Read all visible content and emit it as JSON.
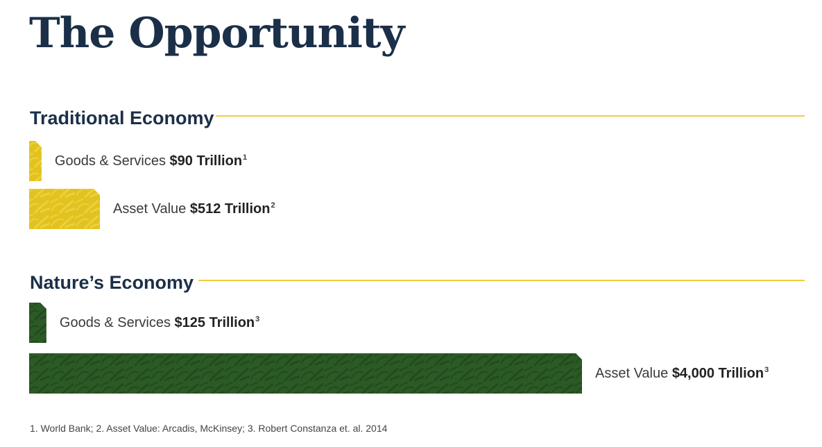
{
  "title": "The Opportunity",
  "colors": {
    "title": "#1b2f48",
    "rule": "#f1cc3f",
    "traditional_bar": "#e3c21f",
    "traditional_bar_light": "#efd84a",
    "nature_bar": "#2b5a26",
    "nature_bar_dark": "#1e4419"
  },
  "chart_data": {
    "type": "bar",
    "orientation": "horizontal",
    "unit": "Trillion",
    "groups": [
      {
        "name": "Traditional Economy",
        "bars": [
          {
            "label": "Goods & Services",
            "value": 90,
            "value_text": "$90 Trillion",
            "footnote": "1"
          },
          {
            "label": "Asset Value",
            "value": 512,
            "value_text": "$512 Trillion",
            "footnote": "2"
          }
        ]
      },
      {
        "name": "Nature’s Economy",
        "bars": [
          {
            "label": "Goods & Services",
            "value": 125,
            "value_text": "$125 Trillion",
            "footnote": "3"
          },
          {
            "label": "Asset Value",
            "value": 4000,
            "value_text": "$4,000 Trillion",
            "footnote": "3"
          }
        ]
      }
    ]
  },
  "footnote": "1. World Bank; 2. Asset Value: Arcadis, McKinsey; 3. Robert Constanza et. al. 2014"
}
